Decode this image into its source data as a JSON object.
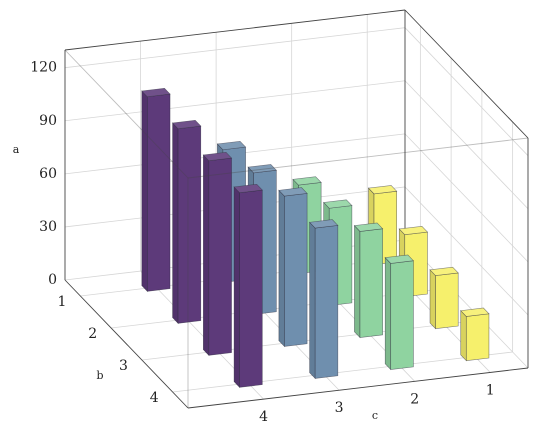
{
  "chart_data": {
    "type": "bar3d",
    "xlabel": "c",
    "ylabel": "b",
    "zlabel": "a",
    "b": [
      1,
      2,
      3,
      4
    ],
    "blim": [
      0.5,
      4.5
    ],
    "bticks": [
      1,
      2,
      3,
      4
    ],
    "clim": [
      5,
      0.5
    ],
    "cticks": [
      4,
      3,
      2,
      1
    ],
    "alim": [
      0,
      130
    ],
    "aticks": [
      0,
      30,
      60,
      90,
      120
    ],
    "grid": true,
    "series": [
      {
        "c": 4,
        "color": "#5d3a7a",
        "values": [
          110,
          110,
          110,
          110
        ]
      },
      {
        "c": 3,
        "color": "#6f8fae",
        "values": [
          75,
          80,
          85,
          85
        ]
      },
      {
        "c": 2,
        "color": "#8fd3a0",
        "values": [
          50,
          55,
          60,
          60
        ]
      },
      {
        "c": 1,
        "color": "#f6f06c",
        "values": [
          40,
          35,
          30,
          25
        ]
      }
    ]
  }
}
